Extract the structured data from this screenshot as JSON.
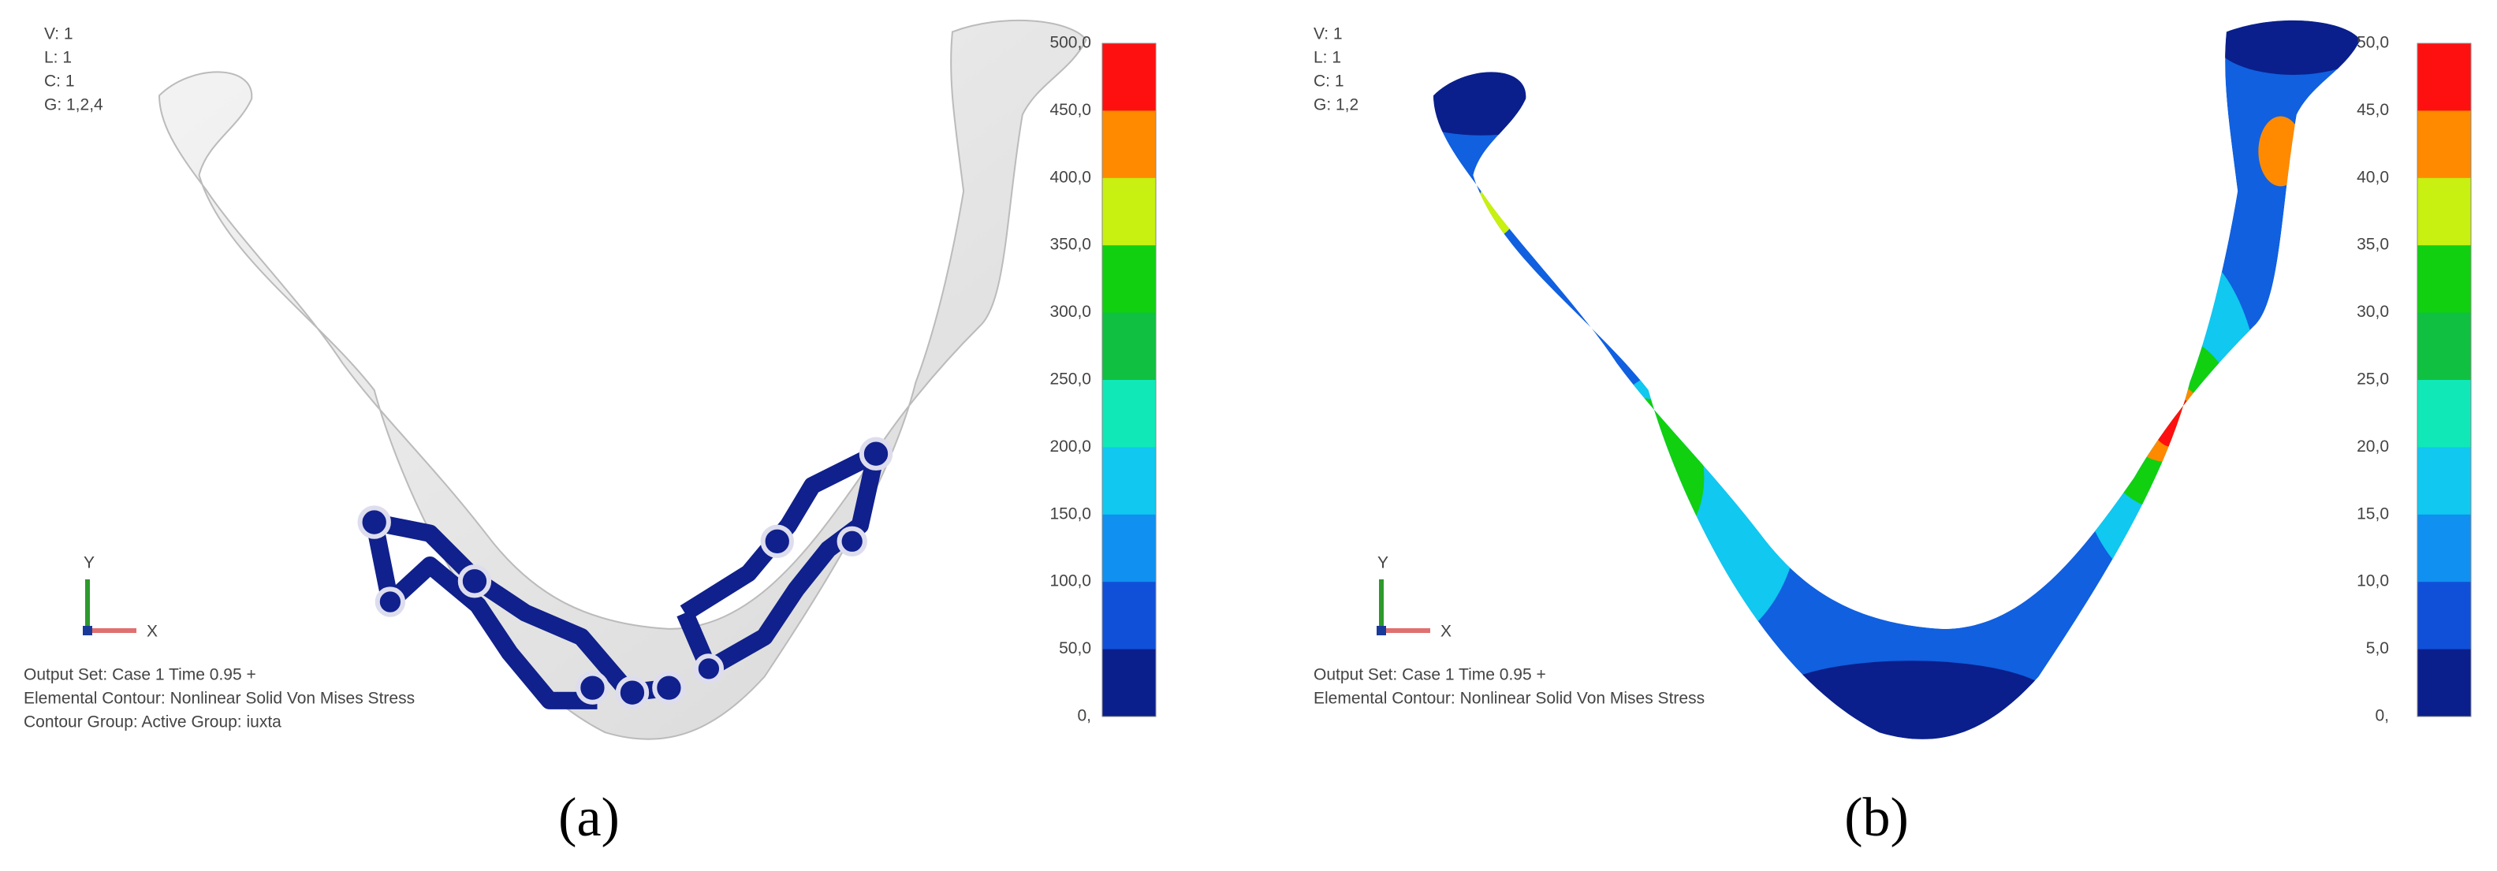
{
  "panels": [
    {
      "header": [
        "V: 1",
        "L: 1",
        "C: 1",
        "G: 1,2,4"
      ],
      "legend_labels": [
        "500,0",
        "450,0",
        "400,0",
        "350,0",
        "300,0",
        "250,0",
        "200,0",
        "150,0",
        "100,0",
        "50,0",
        "0,"
      ],
      "legend_colors": [
        "#ff1010",
        "#ff8a00",
        "#c8f010",
        "#10d010",
        "#10c040",
        "#10e8b8",
        "#10c8f0",
        "#1090f0",
        "#1050d8",
        "#0a1f8c"
      ],
      "axis_labels": [
        "Y",
        "X"
      ],
      "footer": [
        "Output Set: Case 1 Time 0.95  +",
        "Elemental Contour: Nonlinear Solid Von Mises Stress",
        "Contour Group: Active Group: iuxta"
      ],
      "caption": "(a)"
    },
    {
      "header": [
        "V: 1",
        "L: 1",
        "C: 1",
        "G: 1,2"
      ],
      "legend_labels": [
        "50,0",
        "45,0",
        "40,0",
        "35,0",
        "30,0",
        "25,0",
        "20,0",
        "15,0",
        "10,0",
        "5,0",
        "0,"
      ],
      "legend_colors": [
        "#ff1010",
        "#ff8a00",
        "#c8f010",
        "#10d010",
        "#10c040",
        "#10e8b8",
        "#10c8f0",
        "#1090f0",
        "#1050d8",
        "#0a1f8c"
      ],
      "axis_labels": [
        "Y",
        "X"
      ],
      "footer": [
        "Output Set: Case 1 Time 0.95  +",
        "Elemental Contour: Nonlinear Solid Von Mises Stress"
      ],
      "caption": "(b)"
    }
  ]
}
